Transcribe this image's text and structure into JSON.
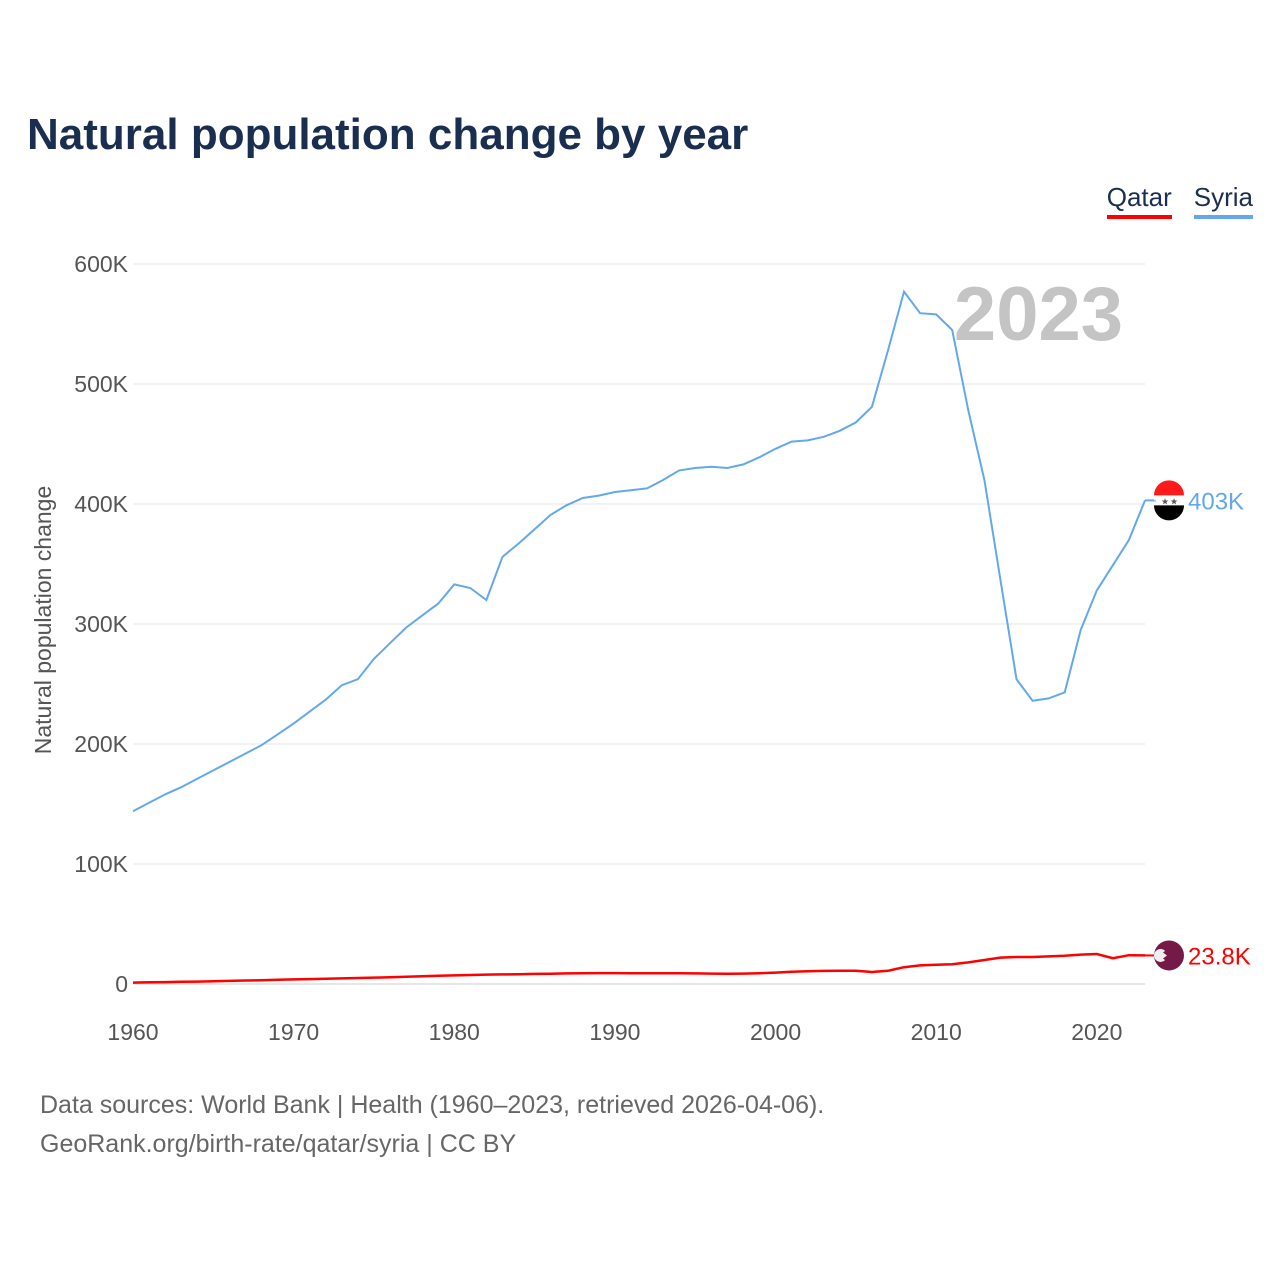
{
  "title": "Natural population change by year",
  "footer": {
    "line1": "Data sources: World Bank | Health (1960–2023, retrieved 2026-04-06).",
    "line2": "GeoRank.org/birth-rate/qatar/syria | CC BY"
  },
  "chart_data": {
    "type": "line",
    "title": "Natural population change by year",
    "xlabel": "",
    "ylabel": "Natural population change",
    "xlim": [
      1960,
      2023
    ],
    "ylim": [
      0,
      600000
    ],
    "x_ticks": [
      "1960",
      "1970",
      "1980",
      "1990",
      "2000",
      "2010",
      "2020"
    ],
    "y_ticks": [
      "0",
      "100K",
      "200K",
      "300K",
      "400K",
      "500K",
      "600K"
    ],
    "grid": true,
    "legend_placement": "top-right",
    "year_watermark": "2023",
    "x": [
      1960,
      1961,
      1962,
      1963,
      1964,
      1965,
      1966,
      1967,
      1968,
      1969,
      1970,
      1971,
      1972,
      1973,
      1974,
      1975,
      1976,
      1977,
      1978,
      1979,
      1980,
      1981,
      1982,
      1983,
      1984,
      1985,
      1986,
      1987,
      1988,
      1989,
      1990,
      1991,
      1992,
      1993,
      1994,
      1995,
      1996,
      1997,
      1998,
      1999,
      2000,
      2001,
      2002,
      2003,
      2004,
      2005,
      2006,
      2007,
      2008,
      2009,
      2010,
      2011,
      2012,
      2013,
      2014,
      2015,
      2016,
      2017,
      2018,
      2019,
      2020,
      2021,
      2022,
      2023
    ],
    "series": [
      {
        "name": "Qatar",
        "color": "#ff0000",
        "end_label": "23.8K",
        "values": [
          1200,
          1400,
          1600,
          1800,
          2000,
          2300,
          2600,
          2900,
          3200,
          3500,
          3800,
          4100,
          4400,
          4700,
          5000,
          5300,
          5600,
          6000,
          6400,
          6800,
          7200,
          7500,
          7800,
          8000,
          8200,
          8400,
          8600,
          8800,
          9000,
          9100,
          9100,
          9000,
          8900,
          8900,
          8900,
          8800,
          8700,
          8600,
          8700,
          9000,
          9500,
          10200,
          10600,
          10900,
          11000,
          11000,
          10000,
          11000,
          14000,
          15500,
          16000,
          16500,
          18000,
          20000,
          22000,
          22500,
          22500,
          23000,
          23500,
          24500,
          25000,
          21500,
          24000,
          23800
        ]
      },
      {
        "name": "Syria",
        "color": "#64a8ec",
        "end_label": "403K",
        "values": [
          144000,
          151000,
          158000,
          164000,
          171000,
          178000,
          185000,
          192000,
          199000,
          208000,
          217000,
          227000,
          237000,
          249000,
          254000,
          271000,
          284000,
          297000,
          307000,
          317000,
          333000,
          330000,
          320000,
          356000,
          367000,
          379000,
          391000,
          399000,
          405000,
          407000,
          410000,
          411500,
          413000,
          420000,
          428000,
          430000,
          431000,
          430000,
          433000,
          439000,
          446000,
          452000,
          453000,
          456000,
          461000,
          468000,
          481000,
          528000,
          577000,
          559000,
          558000,
          545000,
          478000,
          420000,
          337000,
          254000,
          236000,
          238000,
          243000,
          295000,
          328000,
          349000,
          370000,
          403000
        ]
      }
    ]
  }
}
